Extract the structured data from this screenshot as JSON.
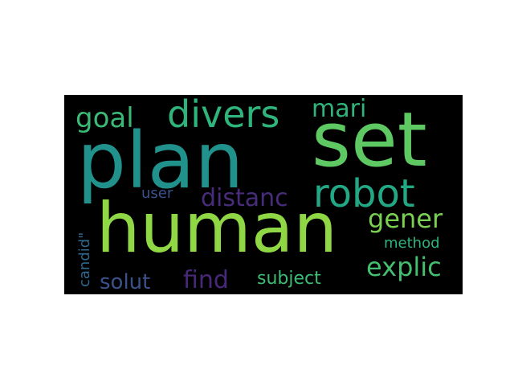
{
  "wordcloud": {
    "background": "#000000",
    "words": [
      {
        "id": "plan",
        "text": "plan",
        "color": "#21918c"
      },
      {
        "id": "set",
        "text": "set",
        "color": "#5ec962"
      },
      {
        "id": "human",
        "text": "human",
        "color": "#8fd744"
      },
      {
        "id": "robot",
        "text": "robot",
        "color": "#22a884"
      },
      {
        "id": "divers",
        "text": "divers",
        "color": "#2fb47c"
      },
      {
        "id": "mari",
        "text": "mari",
        "color": "#2fb47c"
      },
      {
        "id": "goal",
        "text": "goal",
        "color": "#3aba76"
      },
      {
        "id": "distanc",
        "text": "distanc",
        "color": "#472c7a"
      },
      {
        "id": "gener",
        "text": "gener",
        "color": "#7ad151"
      },
      {
        "id": "user",
        "text": "user",
        "color": "#3b528b"
      },
      {
        "id": "method",
        "text": "method",
        "color": "#2fb47c"
      },
      {
        "id": "explic",
        "text": "explic",
        "color": "#44bf70"
      },
      {
        "id": "candid",
        "text": "candid\"",
        "color": "#31688e"
      },
      {
        "id": "solut",
        "text": "solut",
        "color": "#3b528b"
      },
      {
        "id": "find",
        "text": "find",
        "color": "#482878"
      },
      {
        "id": "subject",
        "text": "subject",
        "color": "#3dbc74"
      }
    ]
  }
}
